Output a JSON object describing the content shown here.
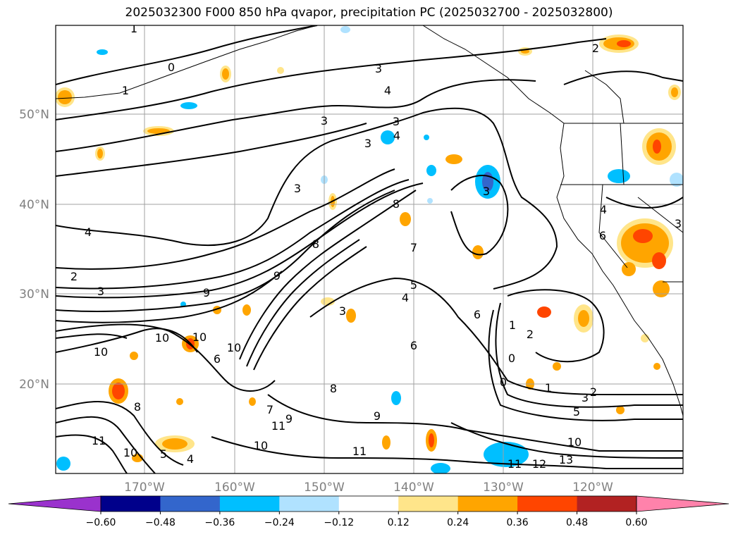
{
  "title": "2025032300 F000 850 hPa qvapor, precipitation PC (2025032700 - 2025032800)",
  "lat_labels": [
    "50°N",
    "40°N",
    "30°N",
    "20°N"
  ],
  "lon_labels": [
    "170°W",
    "160°W",
    "150°W",
    "140°W",
    "130°W",
    "120°W"
  ],
  "colorbar": {
    "colors": [
      "#9a32cd",
      "#00008b",
      "#3366cc",
      "#00bfff",
      "#b0e2ff",
      "#ffffff",
      "#ffe58a",
      "#ffa500",
      "#ff4500",
      "#b22222",
      "#ff82ab"
    ],
    "ticks": [
      "−0.60",
      "−0.48",
      "−0.36",
      "−0.24",
      "−0.12",
      "0.12",
      "0.24",
      "0.36",
      "0.48",
      "0.60"
    ]
  },
  "contour_labels": [
    "1",
    "0",
    "1",
    "3",
    "4",
    "3",
    "3",
    "3",
    "4",
    "3",
    "3",
    "8",
    "4",
    "2",
    "3",
    "8",
    "7",
    "9",
    "9",
    "5",
    "4",
    "6",
    "3",
    "10",
    "10",
    "10",
    "10",
    "7",
    "6",
    "8",
    "8",
    "9",
    "11",
    "9",
    "11",
    "10",
    "10",
    "11",
    "5",
    "4",
    "1",
    "2",
    "0",
    "0",
    "1",
    "3",
    "2",
    "5",
    "10",
    "11",
    "12",
    "13",
    "2",
    "6",
    "4",
    "6",
    "3"
  ]
}
